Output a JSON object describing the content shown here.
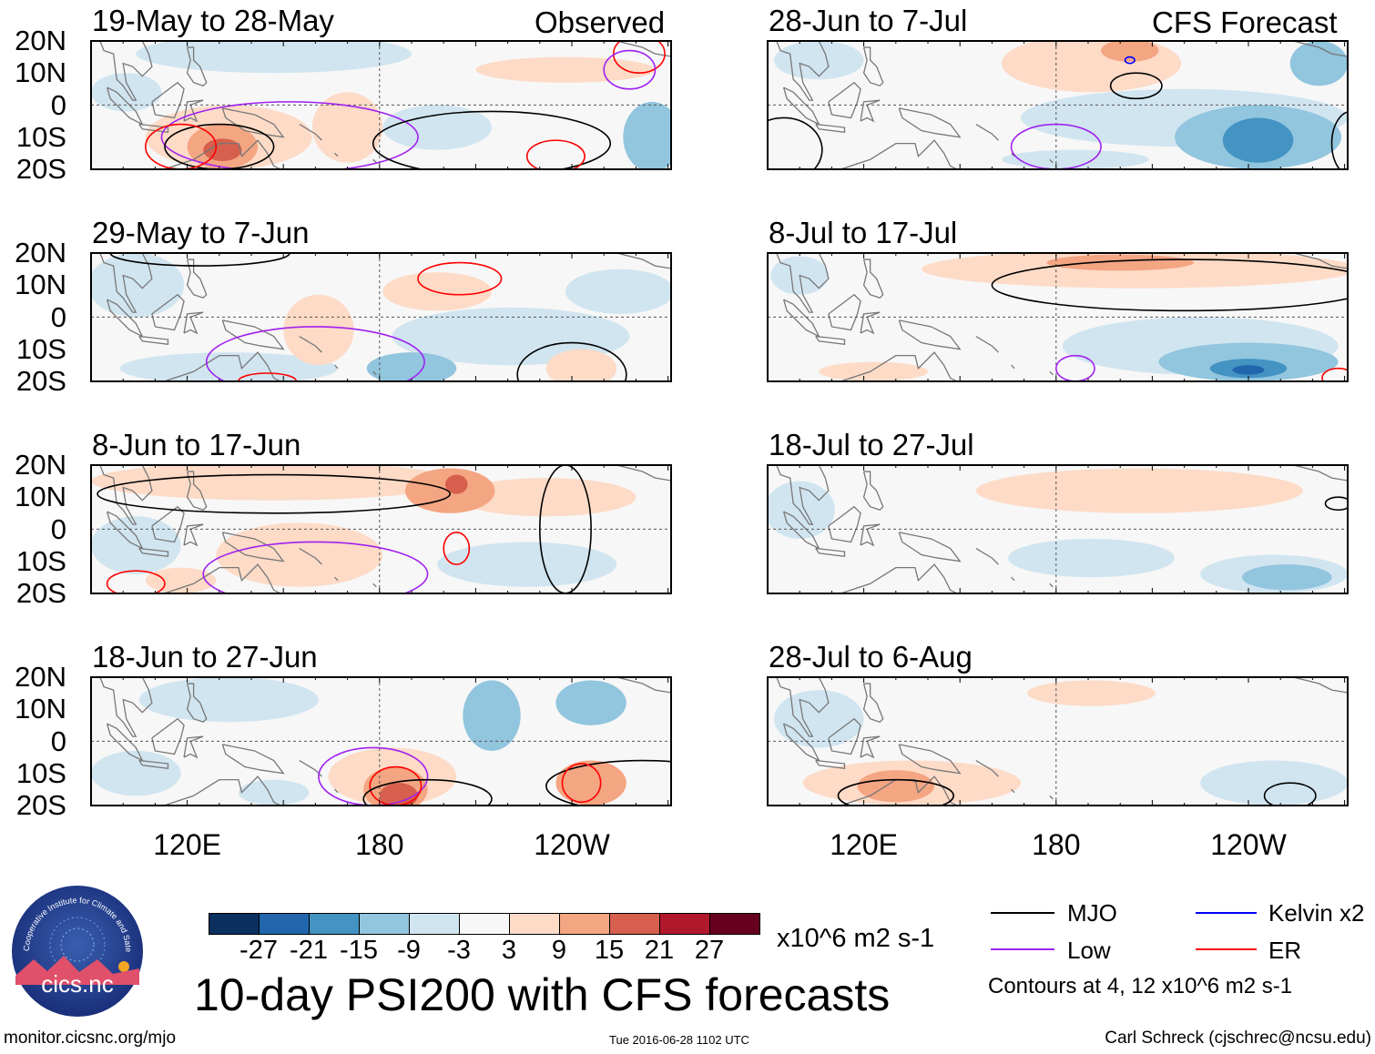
{
  "title": "10-day PSI200 with CFS forecasts",
  "header_labels": {
    "observed": "Observed",
    "forecast": "CFS Forecast"
  },
  "lat_labels": [
    "20N",
    "10N",
    "0",
    "10S",
    "20S"
  ],
  "lon_labels": [
    "120E",
    "180",
    "120W"
  ],
  "colorbar": {
    "labels": [
      "-27",
      "-21",
      "-15",
      "-9",
      "-3",
      "3",
      "9",
      "15",
      "21",
      "27"
    ],
    "colors": [
      "#0b2f5f",
      "#2166ac",
      "#4393c3",
      "#92c5de",
      "#d1e5f0",
      "#f7f7f7",
      "#fddbc7",
      "#f4a582",
      "#d6604d",
      "#b2182b",
      "#67001f"
    ],
    "units": "x10^6 m2 s-1"
  },
  "legend": [
    {
      "label": "MJO",
      "color": "#000000"
    },
    {
      "label": "Kelvin x2",
      "color": "#0000ff"
    },
    {
      "label": "Low",
      "color": "#a020f0"
    },
    {
      "label": "ER",
      "color": "#ff0000"
    }
  ],
  "contour_note": "Contours at 4, 12 x10^6 m2 s-1",
  "footer": {
    "url": "monitor.cicsnc.org/mjo",
    "timestamp": "Tue 2016-06-28 1102 UTC",
    "author": "Carl Schreck (cjschrec@ncsu.edu)"
  },
  "logo": {
    "arc_text": "Cooperative Institute for Climate and Satellites",
    "name": "cics.nc"
  },
  "chart_data": {
    "type": "heatmap",
    "variable": "10-day PSI200 anomaly",
    "units": "x10^6 m2 s-1",
    "lon_range": [
      90,
      270
    ],
    "lat_range": [
      -20,
      20
    ],
    "panels": [
      {
        "title": "19-May to 28-May",
        "group": "observed",
        "anomalies": [
          {
            "lon": 147,
            "lat": 16,
            "rlon": 43,
            "rlat": 6,
            "v": -6
          },
          {
            "lon": 101,
            "lat": 4,
            "rlon": 11,
            "rlat": 6,
            "v": -6
          },
          {
            "lon": 238,
            "lat": 11,
            "rlon": 28,
            "rlat": 4,
            "v": 6
          },
          {
            "lon": 133,
            "lat": -10,
            "rlon": 26,
            "rlat": 10,
            "v": 6
          },
          {
            "lon": 170,
            "lat": -7,
            "rlon": 11,
            "rlat": 11,
            "v": 6
          },
          {
            "lon": 198,
            "lat": -7,
            "rlon": 17,
            "rlat": 7,
            "v": -6
          },
          {
            "lon": 265,
            "lat": -10,
            "rlon": 9,
            "rlat": 11,
            "v": -12
          },
          {
            "lon": 131,
            "lat": -13,
            "rlon": 11,
            "rlat": 7,
            "v": 12
          },
          {
            "lon": 131,
            "lat": -14,
            "rlon": 6,
            "rlat": 3.5,
            "v": 18
          }
        ],
        "contours": [
          {
            "type": "Low",
            "lon": 152,
            "lat": -10,
            "rlon": 40,
            "rlat": 11
          },
          {
            "type": "MJO",
            "lon": 130,
            "lat": -13,
            "rlon": 17,
            "rlat": 7
          },
          {
            "type": "MJO",
            "lon": 215,
            "lat": -12,
            "rlon": 37,
            "rlat": 10
          },
          {
            "type": "ER",
            "lon": 118,
            "lat": -13,
            "rlon": 11,
            "rlat": 7
          },
          {
            "type": "ER",
            "lon": 235,
            "lat": -16,
            "rlon": 9,
            "rlat": 5
          },
          {
            "type": "ER",
            "lon": 261,
            "lat": 16,
            "rlon": 8,
            "rlat": 6
          },
          {
            "type": "Low",
            "lon": 258,
            "lat": 11,
            "rlon": 8,
            "rlat": 6
          }
        ]
      },
      {
        "title": "29-May to 7-Jun",
        "group": "observed",
        "anomalies": [
          {
            "lon": 104,
            "lat": 10,
            "rlon": 15,
            "rlat": 10,
            "v": -6
          },
          {
            "lon": 133,
            "lat": -16,
            "rlon": 34,
            "rlat": 5,
            "v": -6
          },
          {
            "lon": 221,
            "lat": -6,
            "rlon": 37,
            "rlat": 9,
            "v": -6
          },
          {
            "lon": 190,
            "lat": -16,
            "rlon": 14,
            "rlat": 5,
            "v": -12
          },
          {
            "lon": 161,
            "lat": -4,
            "rlon": 11,
            "rlat": 11,
            "v": 6
          },
          {
            "lon": 198,
            "lat": 8,
            "rlon": 17,
            "rlat": 6,
            "v": 6
          },
          {
            "lon": 243,
            "lat": -16,
            "rlon": 11,
            "rlat": 6,
            "v": 6
          },
          {
            "lon": 255,
            "lat": 8,
            "rlon": 17,
            "rlat": 7,
            "v": -6
          }
        ],
        "contours": [
          {
            "type": "Low",
            "lon": 160,
            "lat": -14,
            "rlon": 34,
            "rlat": 11
          },
          {
            "type": "ER",
            "lon": 205,
            "lat": 12,
            "rlon": 13,
            "rlat": 5
          },
          {
            "type": "MJO",
            "lon": 124,
            "lat": 20,
            "rlon": 28,
            "rlat": 4
          },
          {
            "type": "MJO",
            "lon": 240,
            "lat": -18,
            "rlon": 17,
            "rlat": 10
          },
          {
            "type": "ER",
            "lon": 145,
            "lat": -20,
            "rlon": 9,
            "rlat": 2.5
          }
        ]
      },
      {
        "title": "8-Jun to 17-Jun",
        "group": "observed",
        "anomalies": [
          {
            "lon": 147,
            "lat": 15,
            "rlon": 57,
            "rlat": 6,
            "v": 6
          },
          {
            "lon": 232,
            "lat": 10,
            "rlon": 28,
            "rlat": 6,
            "v": 6
          },
          {
            "lon": 155,
            "lat": -8,
            "rlon": 26,
            "rlat": 10,
            "v": 6
          },
          {
            "lon": 104,
            "lat": -5,
            "rlon": 14,
            "rlat": 9,
            "v": -6
          },
          {
            "lon": 226,
            "lat": -11,
            "rlon": 28,
            "rlat": 7,
            "v": -6
          },
          {
            "lon": 118,
            "lat": -16,
            "rlon": 11,
            "rlat": 4,
            "v": 6
          },
          {
            "lon": 202,
            "lat": 12,
            "rlon": 14,
            "rlat": 7,
            "v": 12
          },
          {
            "lon": 204,
            "lat": 14,
            "rlon": 3.5,
            "rlat": 3,
            "v": 18
          }
        ],
        "contours": [
          {
            "type": "MJO",
            "lon": 147,
            "lat": 11,
            "rlon": 55,
            "rlat": 6
          },
          {
            "type": "Low",
            "lon": 160,
            "lat": -14,
            "rlon": 35,
            "rlat": 10
          },
          {
            "type": "ER",
            "lon": 204,
            "lat": -6,
            "rlon": 4,
            "rlat": 5
          },
          {
            "type": "ER",
            "lon": 104,
            "lat": -17,
            "rlon": 9,
            "rlat": 4
          },
          {
            "type": "MJO",
            "lon": 238,
            "lat": 0,
            "rlon": 8,
            "rlat": 20
          },
          {
            "type": "ER",
            "lon": 144,
            "lat": 4,
            "rlon": 0,
            "rlat": 0
          }
        ]
      },
      {
        "title": "18-Jun to 27-Jun",
        "group": "observed",
        "anomalies": [
          {
            "lon": 133,
            "lat": 13,
            "rlon": 28,
            "rlat": 7,
            "v": -6
          },
          {
            "lon": 215,
            "lat": 8,
            "rlon": 9,
            "rlat": 11,
            "v": -12
          },
          {
            "lon": 246,
            "lat": 12,
            "rlon": 11,
            "rlat": 7,
            "v": -12
          },
          {
            "lon": 104,
            "lat": -10,
            "rlon": 14,
            "rlat": 7,
            "v": -6
          },
          {
            "lon": 147,
            "lat": -16,
            "rlon": 11,
            "rlat": 4,
            "v": -6
          },
          {
            "lon": 184,
            "lat": -11,
            "rlon": 20,
            "rlat": 9,
            "v": 6
          },
          {
            "lon": 185,
            "lat": -15,
            "rlon": 10,
            "rlat": 7,
            "v": 12
          },
          {
            "lon": 186,
            "lat": -17,
            "rlon": 6,
            "rlat": 4,
            "v": 18
          },
          {
            "lon": 246,
            "lat": -13,
            "rlon": 11,
            "rlat": 7,
            "v": 12
          }
        ],
        "contours": [
          {
            "type": "Low",
            "lon": 178,
            "lat": -11,
            "rlon": 17,
            "rlat": 9
          },
          {
            "type": "ER",
            "lon": 185,
            "lat": -14,
            "rlon": 8,
            "rlat": 6
          },
          {
            "type": "MJO",
            "lon": 195,
            "lat": -18,
            "rlon": 20,
            "rlat": 6
          },
          {
            "type": "MJO",
            "lon": 262,
            "lat": -14,
            "rlon": 30,
            "rlat": 8
          },
          {
            "type": "ER",
            "lon": 243,
            "lat": -13,
            "rlon": 6,
            "rlat": 6
          }
        ]
      },
      {
        "title": "28-Jun to 7-Jul",
        "group": "forecast",
        "anomalies": [
          {
            "lon": 191,
            "lat": 13,
            "rlon": 28,
            "rlat": 9,
            "v": 6
          },
          {
            "lon": 203,
            "lat": 17,
            "rlon": 9,
            "rlat": 3.5,
            "v": 12
          },
          {
            "lon": 106,
            "lat": 14,
            "rlon": 14,
            "rlat": 6,
            "v": -6
          },
          {
            "lon": 220,
            "lat": -4,
            "rlon": 51,
            "rlat": 9,
            "v": -6
          },
          {
            "lon": 243,
            "lat": -10,
            "rlon": 26,
            "rlat": 10,
            "v": -12
          },
          {
            "lon": 243,
            "lat": -11,
            "rlon": 11,
            "rlat": 7,
            "v": -18
          },
          {
            "lon": 262,
            "lat": 13,
            "rlon": 9,
            "rlat": 7,
            "v": -12
          },
          {
            "lon": 186,
            "lat": -17,
            "rlon": 23,
            "rlat": 3,
            "v": -6
          }
        ],
        "contours": [
          {
            "type": "MJO",
            "lon": 205,
            "lat": 6,
            "rlon": 8,
            "rlat": 4
          },
          {
            "type": "Low",
            "lon": 180,
            "lat": -13,
            "rlon": 14,
            "rlat": 7
          },
          {
            "type": "MJO",
            "lon": 95,
            "lat": -14,
            "rlon": 12,
            "rlat": 10
          },
          {
            "type": "MJO",
            "lon": 272,
            "lat": -12,
            "rlon": 6,
            "rlat": 10
          },
          {
            "type": "Kelvin x2",
            "lon": 203,
            "lat": 14,
            "rlon": 1.5,
            "rlat": 1
          }
        ]
      },
      {
        "title": "8-Jul to 17-Jul",
        "group": "forecast",
        "anomalies": [
          {
            "lon": 206,
            "lat": 15,
            "rlon": 68,
            "rlat": 6,
            "v": 6
          },
          {
            "lon": 200,
            "lat": 17,
            "rlon": 23,
            "rlat": 2.5,
            "v": 12
          },
          {
            "lon": 225,
            "lat": -9,
            "rlon": 43,
            "rlat": 9,
            "v": -6
          },
          {
            "lon": 240,
            "lat": -14,
            "rlon": 28,
            "rlat": 6,
            "v": -12
          },
          {
            "lon": 240,
            "lat": -16,
            "rlon": 12,
            "rlat": 3,
            "v": -18
          },
          {
            "lon": 240,
            "lat": -16.5,
            "rlon": 5,
            "rlat": 1.5,
            "v": -24
          },
          {
            "lon": 100,
            "lat": 13,
            "rlon": 9,
            "rlat": 6,
            "v": -6
          },
          {
            "lon": 123,
            "lat": -17,
            "rlon": 17,
            "rlat": 3,
            "v": 6
          }
        ],
        "contours": [
          {
            "type": "MJO",
            "lon": 220,
            "lat": 10,
            "rlon": 60,
            "rlat": 8
          },
          {
            "type": "Low",
            "lon": 186,
            "lat": -16,
            "rlon": 6,
            "rlat": 4
          },
          {
            "type": "ER",
            "lon": 268,
            "lat": -19,
            "rlon": 5,
            "rlat": 3
          }
        ]
      },
      {
        "title": "18-Jul to 27-Jul",
        "group": "forecast",
        "anomalies": [
          {
            "lon": 206,
            "lat": 12,
            "rlon": 51,
            "rlat": 7,
            "v": 6
          },
          {
            "lon": 191,
            "lat": -9,
            "rlon": 26,
            "rlat": 6,
            "v": -6
          },
          {
            "lon": 248,
            "lat": -14,
            "rlon": 23,
            "rlat": 6,
            "v": -6
          },
          {
            "lon": 252,
            "lat": -15,
            "rlon": 14,
            "rlat": 4,
            "v": -12
          },
          {
            "lon": 100,
            "lat": 6,
            "rlon": 11,
            "rlat": 9,
            "v": -6
          }
        ],
        "contours": [
          {
            "type": "MJO",
            "lon": 268,
            "lat": 8,
            "rlon": 4,
            "rlat": 2
          }
        ]
      },
      {
        "title": "28-Jul to 6-Aug",
        "group": "forecast",
        "anomalies": [
          {
            "lon": 106,
            "lat": 7,
            "rlon": 14,
            "rlat": 9,
            "v": -6
          },
          {
            "lon": 135,
            "lat": -13,
            "rlon": 34,
            "rlat": 7,
            "v": 6
          },
          {
            "lon": 130,
            "lat": -14,
            "rlon": 12,
            "rlat": 5,
            "v": 12
          },
          {
            "lon": 191,
            "lat": 15,
            "rlon": 20,
            "rlat": 4,
            "v": 6
          },
          {
            "lon": 248,
            "lat": -13,
            "rlon": 23,
            "rlat": 7,
            "v": -6
          }
        ],
        "contours": [
          {
            "type": "MJO",
            "lon": 130,
            "lat": -17,
            "rlon": 18,
            "rlat": 5
          },
          {
            "type": "MJO",
            "lon": 253,
            "lat": -17,
            "rlon": 8,
            "rlat": 4
          }
        ]
      }
    ]
  }
}
